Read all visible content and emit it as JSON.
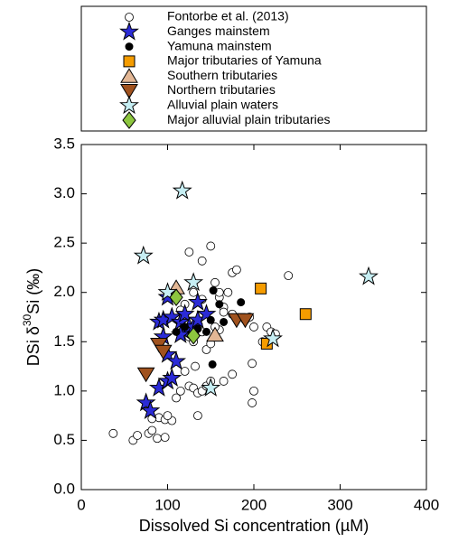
{
  "chart_data": {
    "type": "scatter",
    "xlabel": "Dissolved Si concentration (µM)",
    "ylabel": [
      "DSi δ",
      "30",
      "Si (‰)"
    ],
    "xlim": [
      0,
      400
    ],
    "xticks": [
      0,
      100,
      200,
      300,
      400
    ],
    "ylim": [
      0,
      3.5
    ],
    "yticks": [
      {
        "value": 0,
        "label": "0.0"
      },
      0.5,
      {
        "value": 1,
        "label": "1.0"
      },
      1.5,
      {
        "value": 2,
        "label": "2.0"
      },
      2.5,
      {
        "value": 3,
        "label": "3.0"
      },
      3.5
    ],
    "legend": "top-outside",
    "series": [
      {
        "name": "Fontorbe et al. (2013)",
        "marker": "circle-open",
        "color": "#ffffff",
        "x": [
          37,
          60,
          65,
          78,
          82,
          88,
          97,
          90,
          82,
          97,
          105,
          100,
          110,
          115,
          125,
          130,
          135,
          140,
          145,
          120,
          132,
          135,
          150,
          165,
          175,
          198,
          200,
          198,
          145,
          150,
          160,
          155,
          125,
          130,
          140,
          165,
          160,
          170,
          165,
          175,
          195,
          200,
          215,
          220,
          225,
          210,
          190,
          240,
          175,
          180,
          125,
          140,
          150,
          120,
          115,
          130,
          140,
          160,
          155
        ],
        "values": [
          0.57,
          0.5,
          0.55,
          0.57,
          0.6,
          0.52,
          0.53,
          0.73,
          0.72,
          0.71,
          0.7,
          0.75,
          0.93,
          1.0,
          1.05,
          1.03,
          0.98,
          1.0,
          1.05,
          1.2,
          1.25,
          0.75,
          1.1,
          1.1,
          1.17,
          0.88,
          1.0,
          1.28,
          1.42,
          1.48,
          1.62,
          1.65,
          1.55,
          1.5,
          1.6,
          1.85,
          1.95,
          2.0,
          1.8,
          1.78,
          1.75,
          1.65,
          1.65,
          1.6,
          1.58,
          1.5,
          1.72,
          2.17,
          2.2,
          2.23,
          2.41,
          2.32,
          2.47,
          1.88,
          1.82,
          2.0,
          1.93,
          2.0,
          2.1
        ]
      },
      {
        "name": "Ganges mainstem",
        "marker": "star",
        "color": "#2b2bd6",
        "x": [
          75,
          80,
          90,
          100,
          105,
          100,
          110,
          95,
          90,
          95,
          105,
          115,
          120,
          120,
          125,
          130,
          135,
          135,
          145,
          100,
          115
        ],
        "values": [
          0.88,
          0.8,
          1.03,
          1.1,
          1.13,
          1.37,
          1.3,
          1.55,
          1.7,
          1.72,
          1.75,
          1.7,
          1.78,
          1.6,
          1.65,
          1.65,
          1.72,
          1.9,
          1.78,
          1.95,
          1.57
        ]
      },
      {
        "name": "Yamuna mainstem",
        "marker": "dot",
        "color": "#000000",
        "x": [
          110,
          120,
          135,
          145,
          153,
          150,
          165,
          185,
          152,
          160
        ],
        "values": [
          1.6,
          1.65,
          1.63,
          1.6,
          2.02,
          1.72,
          1.7,
          1.9,
          1.27,
          1.88
        ]
      },
      {
        "name": "Major tributaries of Yamuna",
        "marker": "square",
        "color": "#f59c00",
        "x": [
          208,
          260,
          215
        ],
        "values": [
          2.04,
          1.78,
          1.48
        ]
      },
      {
        "name": "Southern tributaries",
        "marker": "triangle-up",
        "color": "#e3b795",
        "x": [
          110,
          155
        ],
        "values": [
          2.05,
          1.57
        ]
      },
      {
        "name": "Northern tributaries",
        "marker": "triangle-down",
        "color": "#a0521e",
        "x": [
          90,
          95,
          75,
          180,
          190
        ],
        "values": [
          1.47,
          1.4,
          1.17,
          1.72,
          1.72
        ]
      },
      {
        "name": "Alluvial plain waters",
        "marker": "star",
        "color": "#c6eef3",
        "x": [
          117,
          72,
          130,
          333,
          150,
          222,
          100
        ],
        "values": [
          3.03,
          2.37,
          2.1,
          2.16,
          1.03,
          1.53,
          2.0
        ]
      },
      {
        "name": "Major alluvial plain tributaries",
        "marker": "diamond",
        "color": "#8dc63f",
        "x": [
          110,
          130
        ],
        "values": [
          1.95,
          1.56
        ]
      }
    ]
  }
}
